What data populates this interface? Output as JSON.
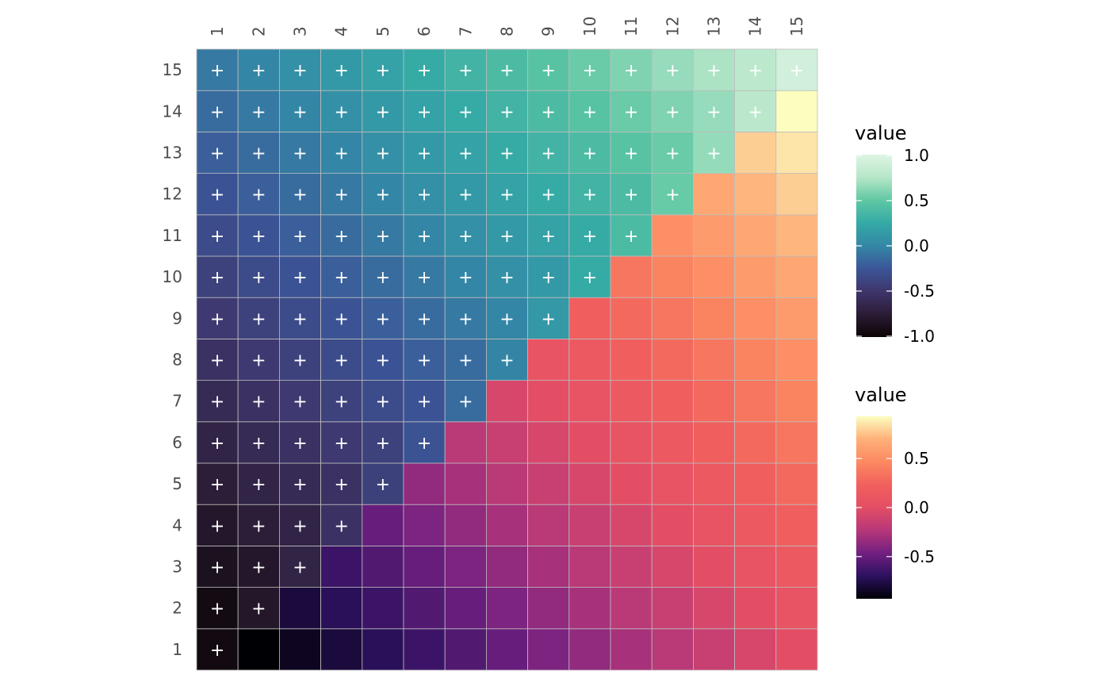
{
  "chart_data": {
    "type": "heatmap",
    "x_categories": [
      "1",
      "2",
      "3",
      "4",
      "5",
      "6",
      "7",
      "8",
      "9",
      "10",
      "11",
      "12",
      "13",
      "14",
      "15"
    ],
    "y_categories": [
      "1",
      "2",
      "3",
      "4",
      "5",
      "6",
      "7",
      "8",
      "9",
      "10",
      "11",
      "12",
      "13",
      "14",
      "15"
    ],
    "cell_marker": "+",
    "upper_triangle": {
      "description_of_region": "cells where row >= column, marked with +",
      "legend_title": "value",
      "legend_ticks": [
        "1.0",
        "0.5",
        "0.0",
        "-0.5",
        "-1.0"
      ],
      "range": [
        -1.0,
        1.0
      ],
      "palette": "mako"
    },
    "lower_triangle": {
      "description_of_region": "cells where row < column",
      "legend_title": "value",
      "legend_ticks": [
        "0.5",
        "0.0",
        "-0.5"
      ],
      "range": [
        -0.93,
        0.93
      ],
      "palette": "magma"
    }
  },
  "colors": {
    "mako_stops": [
      "#0b0405",
      "#2b1c35",
      "#3e356b",
      "#3b5698",
      "#3487a6",
      "#34aaa6",
      "#5fc8a3",
      "#b5e6c8",
      "#def5e5"
    ],
    "magma_stops": [
      "#000004",
      "#2c115f",
      "#721f81",
      "#b73779",
      "#e44e65",
      "#f1605d",
      "#fc8961",
      "#feb078",
      "#fcfdbf"
    ]
  }
}
